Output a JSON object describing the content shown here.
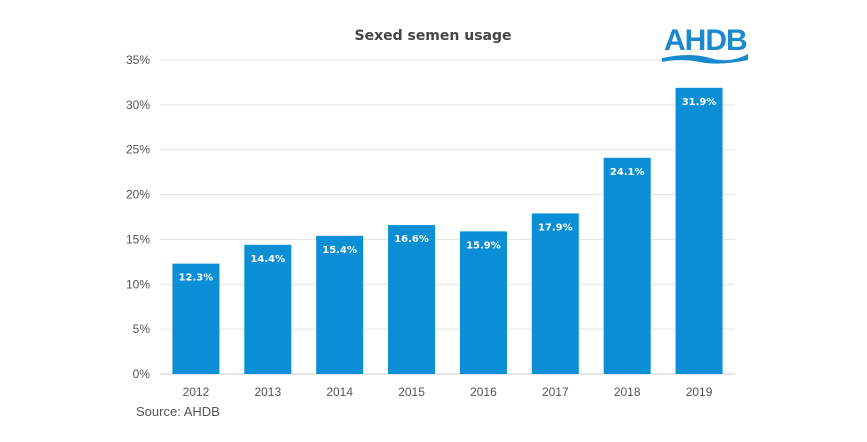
{
  "chart_data": {
    "type": "bar",
    "title": "Sexed semen usage",
    "categories": [
      "2012",
      "2013",
      "2014",
      "2015",
      "2016",
      "2017",
      "2018",
      "2019"
    ],
    "values": [
      12.3,
      14.4,
      15.4,
      16.6,
      15.9,
      17.9,
      24.1,
      31.9
    ],
    "data_labels": [
      "12.3%",
      "14.4%",
      "15.4%",
      "16.6%",
      "15.9%",
      "17.9%",
      "24.1%",
      "31.9%"
    ],
    "ylim": [
      0,
      35
    ],
    "yticks": [
      0,
      5,
      10,
      15,
      20,
      25,
      30,
      35
    ],
    "ytick_labels": [
      "0%",
      "5%",
      "10%",
      "15%",
      "20%",
      "25%",
      "30%",
      "35%"
    ],
    "xlabel": "",
    "ylabel": "",
    "grid": true,
    "bar_color": "#0a8fd6"
  },
  "source": "Source: AHDB",
  "logo_text": "AHDB",
  "logo_color": "#1a8ad0"
}
